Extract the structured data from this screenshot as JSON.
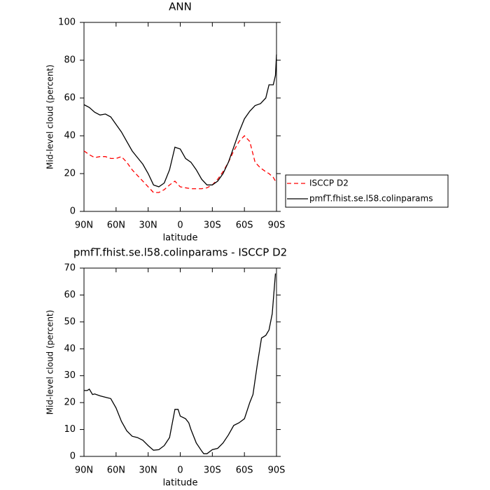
{
  "chart_data": [
    {
      "type": "line",
      "title": "ANN",
      "xlabel": "latitude",
      "ylabel": "Mid-level cloud (percent)",
      "x": [
        90,
        85,
        80,
        75,
        70,
        65,
        60,
        55,
        50,
        45,
        40,
        35,
        30,
        25,
        20,
        15,
        10,
        5,
        0,
        -5,
        -10,
        -15,
        -20,
        -25,
        -30,
        -35,
        -40,
        -45,
        -50,
        -55,
        -60,
        -65,
        -70,
        -75,
        -80,
        -83,
        -87,
        -89,
        -90
      ],
      "series": [
        {
          "name": "ISCCP D2",
          "color": "#ff0000",
          "dashed": true,
          "values": [
            32,
            30,
            28.5,
            29,
            29,
            28,
            28,
            29,
            26,
            22,
            19,
            16,
            13,
            10,
            10,
            11.5,
            14,
            16,
            13,
            12.5,
            12,
            12,
            12,
            12.5,
            14,
            17,
            21,
            26,
            32,
            37,
            40,
            37,
            26,
            23,
            21,
            20,
            18,
            16,
            15
          ]
        },
        {
          "name": "pmfT.fhist.se.l58.colinparams",
          "color": "#000000",
          "dashed": false,
          "values": [
            56.5,
            55,
            52.5,
            51,
            51.5,
            50,
            46,
            42,
            37,
            32,
            28.5,
            25,
            20,
            14,
            13,
            15,
            22,
            34,
            33,
            28,
            26,
            22,
            17,
            14,
            14,
            16,
            20,
            26,
            34,
            42,
            49,
            53,
            56,
            57,
            60,
            67,
            67,
            72,
            83
          ]
        }
      ],
      "xlim": [
        90,
        -90
      ],
      "xticks": [
        {
          "value": 90,
          "label": "90N"
        },
        {
          "value": 60,
          "label": "60N"
        },
        {
          "value": 30,
          "label": "30N"
        },
        0,
        {
          "value": -30,
          "label": "30S"
        },
        {
          "value": -60,
          "label": "60S"
        },
        {
          "value": -90,
          "label": "90S"
        }
      ],
      "ylim": [
        0,
        100
      ],
      "yticks": [
        0,
        20,
        40,
        60,
        80,
        100
      ],
      "legend": "right"
    },
    {
      "type": "line",
      "title": "pmfT.fhist.se.l58.colinparams - ISCCP D2",
      "xlabel": "latitude",
      "ylabel": "Mid-level cloud (percent)",
      "x": [
        90,
        87,
        85,
        82,
        80,
        75,
        70,
        65,
        60,
        55,
        50,
        45,
        40,
        35,
        30,
        25,
        20,
        15,
        10,
        5,
        2,
        0,
        -5,
        -8,
        -10,
        -15,
        -20,
        -22,
        -25,
        -30,
        -35,
        -40,
        -45,
        -50,
        -55,
        -60,
        -65,
        -68,
        -72,
        -76,
        -80,
        -83,
        -86,
        -89
      ],
      "color": "#000000",
      "values": [
        24.5,
        24.5,
        25,
        23,
        23.2,
        22.5,
        22,
        21.5,
        18,
        13,
        9.5,
        7.5,
        7,
        6,
        4,
        2.3,
        2.5,
        4,
        7,
        17.5,
        17.5,
        15,
        14,
        12.5,
        10,
        5,
        2,
        1,
        1,
        2.5,
        3,
        5,
        8,
        11.5,
        12.5,
        14,
        20,
        23,
        34,
        44,
        45,
        47,
        53,
        68
      ],
      "xlim": [
        90,
        -90
      ],
      "xticks": [
        {
          "value": 90,
          "label": "90N"
        },
        {
          "value": 60,
          "label": "60N"
        },
        {
          "value": 30,
          "label": "30N"
        },
        0,
        {
          "value": -30,
          "label": "30S"
        },
        {
          "value": -60,
          "label": "60S"
        },
        {
          "value": -90,
          "label": "90S"
        }
      ],
      "ylim": [
        0,
        70
      ],
      "yticks": [
        0,
        10,
        20,
        30,
        40,
        50,
        60,
        70
      ]
    }
  ]
}
